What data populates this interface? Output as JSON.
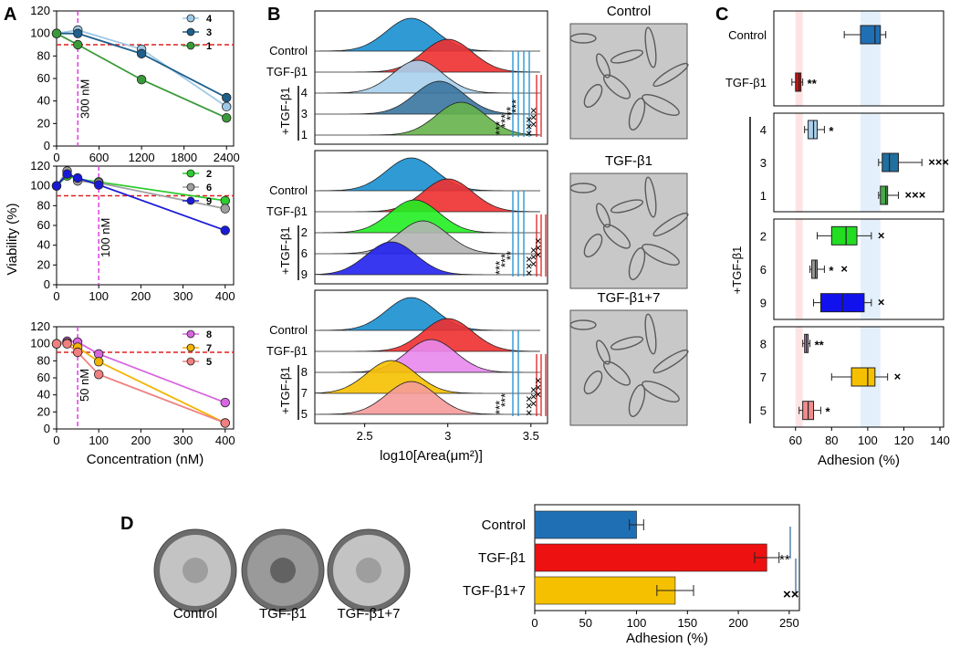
{
  "figure": {
    "panels": [
      "A",
      "B",
      "C",
      "D"
    ]
  },
  "chart_data": [
    {
      "id": "A1",
      "type": "line",
      "panel": "A",
      "ylabel": "Viability (%)",
      "xlabel": "",
      "xlim": [
        0,
        2500
      ],
      "ylim": [
        0,
        120
      ],
      "xticks": [
        0,
        600,
        1200,
        1800,
        2400
      ],
      "yticks": [
        0,
        20,
        40,
        60,
        80,
        100,
        120
      ],
      "threshold": 90,
      "vline": 300,
      "vline_label": "300 nM",
      "series": [
        {
          "name": "4",
          "color": "#9ec9e6",
          "x": [
            0,
            300,
            1200,
            2400
          ],
          "y": [
            100,
            103,
            86,
            35
          ]
        },
        {
          "name": "3",
          "color": "#1f5f8b",
          "x": [
            0,
            300,
            1200,
            2400
          ],
          "y": [
            100,
            100,
            82,
            43
          ]
        },
        {
          "name": "1",
          "color": "#3a9a3a",
          "x": [
            0,
            300,
            1200,
            2400
          ],
          "y": [
            100,
            90,
            59,
            25
          ]
        }
      ]
    },
    {
      "id": "A2",
      "type": "line",
      "panel": "A",
      "ylabel": "",
      "xlabel": "",
      "xlim": [
        0,
        420
      ],
      "ylim": [
        0,
        120
      ],
      "xticks": [
        0,
        100,
        200,
        300,
        400
      ],
      "yticks": [
        0,
        20,
        40,
        60,
        80,
        100,
        120
      ],
      "threshold": 90,
      "vline": 100,
      "vline_label": "100 nM",
      "series": [
        {
          "name": "2",
          "color": "#2ecc2e",
          "x": [
            0,
            25,
            50,
            100,
            400
          ],
          "y": [
            100,
            110,
            107,
            104,
            85
          ]
        },
        {
          "name": "6",
          "color": "#a0a0a0",
          "x": [
            0,
            25,
            50,
            100,
            400
          ],
          "y": [
            100,
            115,
            105,
            103,
            77
          ]
        },
        {
          "name": "9",
          "color": "#1a1ad6",
          "x": [
            0,
            25,
            50,
            100,
            400
          ],
          "y": [
            100,
            112,
            108,
            101,
            55
          ]
        }
      ]
    },
    {
      "id": "A3",
      "type": "line",
      "panel": "A",
      "ylabel": "",
      "xlabel": "Concentration (nM)",
      "xlim": [
        0,
        420
      ],
      "ylim": [
        0,
        120
      ],
      "xticks": [
        0,
        100,
        200,
        300,
        400
      ],
      "yticks": [
        0,
        20,
        40,
        60,
        80,
        100,
        120
      ],
      "threshold": 90,
      "vline": 50,
      "vline_label": "50 nM",
      "series": [
        {
          "name": "8",
          "color": "#d866e0",
          "x": [
            0,
            25,
            50,
            100,
            400
          ],
          "y": [
            100,
            103,
            102,
            88,
            31
          ]
        },
        {
          "name": "7",
          "color": "#f2b400",
          "x": [
            0,
            25,
            50,
            100,
            400
          ],
          "y": [
            100,
            101,
            96,
            79,
            7
          ]
        },
        {
          "name": "5",
          "color": "#f08080",
          "x": [
            0,
            25,
            50,
            100,
            400
          ],
          "y": [
            100,
            100,
            90,
            64,
            7
          ]
        }
      ]
    },
    {
      "id": "B",
      "type": "area",
      "panel": "B",
      "xlabel": "log10[Area(μm²)]",
      "xlim": [
        2.2,
        3.6
      ],
      "xticks": [
        2.5,
        3.0,
        3.5
      ],
      "groups": [
        {
          "rows": [
            {
              "label": "Control",
              "color": "#1a8fd0",
              "peak": 2.78
            },
            {
              "label": "TGF-β1",
              "color": "#ee3030",
              "peak": 3.0
            },
            {
              "label": "4",
              "color": "#a8d0ec",
              "peak": 2.82
            },
            {
              "label": "3",
              "color": "#3b76a0",
              "peak": 2.95
            },
            {
              "label": "1",
              "color": "#66b24a",
              "peak": 3.08
            }
          ],
          "blue_stars": [
            "***",
            "***",
            "***",
            "***"
          ],
          "red_marks": [
            "×××",
            "×××"
          ]
        },
        {
          "rows": [
            {
              "label": "Control",
              "color": "#1a8fd0",
              "peak": 2.78
            },
            {
              "label": "TGF-β1",
              "color": "#ee3030",
              "peak": 3.0
            },
            {
              "label": "2",
              "color": "#22ee22",
              "peak": 2.8
            },
            {
              "label": "6",
              "color": "#b4b4b4",
              "peak": 2.85
            },
            {
              "label": "9",
              "color": "#2222ee",
              "peak": 2.66
            }
          ],
          "blue_stars": [
            "***",
            "***",
            "**"
          ],
          "red_marks": [
            "×××",
            "×××",
            "×××"
          ]
        },
        {
          "rows": [
            {
              "label": "Control",
              "color": "#1a8fd0",
              "peak": 2.78
            },
            {
              "label": "TGF-β1",
              "color": "#ee3030",
              "peak": 3.0
            },
            {
              "label": "8",
              "color": "#e888ee",
              "peak": 2.9
            },
            {
              "label": "7",
              "color": "#f5c000",
              "peak": 2.66
            },
            {
              "label": "5",
              "color": "#f59a9a",
              "peak": 2.78
            }
          ],
          "blue_stars": [
            "***",
            "***"
          ],
          "red_marks": [
            "×××",
            "×××",
            "×××"
          ]
        }
      ],
      "side_label": "+TGF-β1",
      "micrograph_titles": [
        "Control",
        "TGF-β1",
        "TGF-β1+7"
      ]
    },
    {
      "id": "C",
      "type": "bar",
      "panel": "C",
      "xlabel": "Adhesion (%)",
      "xlim": [
        48,
        142
      ],
      "xticks": [
        60,
        80,
        100,
        120,
        140
      ],
      "side_label": "+TGF-β1",
      "groups": [
        {
          "boxes": [
            {
              "label": "Control",
              "color": "#1f6fb5",
              "min": 87,
              "q1": 96,
              "median": 104,
              "q3": 107,
              "max": 110,
              "blue": "",
              "red": ""
            },
            {
              "label": "TGF-β1",
              "color": "#cc1111",
              "min": 58,
              "q1": 60,
              "median": 62,
              "q3": 63,
              "max": 64,
              "blue": "**",
              "red": ""
            }
          ]
        },
        {
          "boxes": [
            {
              "label": "4",
              "color": "#a8d0ec",
              "min": 65,
              "q1": 67,
              "median": 70,
              "q3": 72,
              "max": 76,
              "blue": "*",
              "red": ""
            },
            {
              "label": "3",
              "color": "#1f6fa0",
              "min": 106,
              "q1": 108,
              "median": 112,
              "q3": 117,
              "max": 130,
              "blue": "",
              "red": "×××"
            },
            {
              "label": "1",
              "color": "#4aa84a",
              "min": 106,
              "q1": 107,
              "median": 110,
              "q3": 111,
              "max": 117,
              "blue": "",
              "red": "×××"
            }
          ]
        },
        {
          "boxes": [
            {
              "label": "2",
              "color": "#22dd22",
              "min": 72,
              "q1": 80,
              "median": 88,
              "q3": 94,
              "max": 102,
              "blue": "",
              "red": "×"
            },
            {
              "label": "6",
              "color": "#999999",
              "min": 68,
              "q1": 69,
              "median": 71,
              "q3": 72,
              "max": 76,
              "blue": "*",
              "red": "×"
            },
            {
              "label": "9",
              "color": "#1111ee",
              "min": 70,
              "q1": 74,
              "median": 86,
              "q3": 98,
              "max": 102,
              "blue": "",
              "red": "×"
            }
          ]
        },
        {
          "boxes": [
            {
              "label": "8",
              "color": "#d580dc",
              "min": 64,
              "q1": 65,
              "median": 66,
              "q3": 67,
              "max": 68,
              "blue": "**",
              "red": ""
            },
            {
              "label": "7",
              "color": "#f5c000",
              "min": 80,
              "q1": 91,
              "median": 100,
              "q3": 104,
              "max": 111,
              "blue": "",
              "red": "×"
            },
            {
              "label": "5",
              "color": "#f08c8c",
              "min": 62,
              "q1": 64,
              "median": 67,
              "q3": 70,
              "max": 74,
              "blue": "*",
              "red": ""
            }
          ]
        }
      ]
    },
    {
      "id": "D",
      "type": "bar",
      "panel": "D",
      "xlabel": "Adhesion (%)",
      "xlim": [
        0,
        260
      ],
      "xticks": [
        0,
        50,
        100,
        150,
        200,
        250
      ],
      "categories": [
        "Control",
        "TGF-β1",
        "TGF-β1+7"
      ],
      "values": [
        100,
        228,
        138
      ],
      "errors": [
        7,
        12,
        18
      ],
      "colors": [
        "#1f6fb5",
        "#ee1111",
        "#f5c000"
      ],
      "sig": [
        "**",
        "××"
      ],
      "dish_labels": [
        "Control",
        "TGF-β1",
        "TGF-β1+7"
      ]
    }
  ]
}
